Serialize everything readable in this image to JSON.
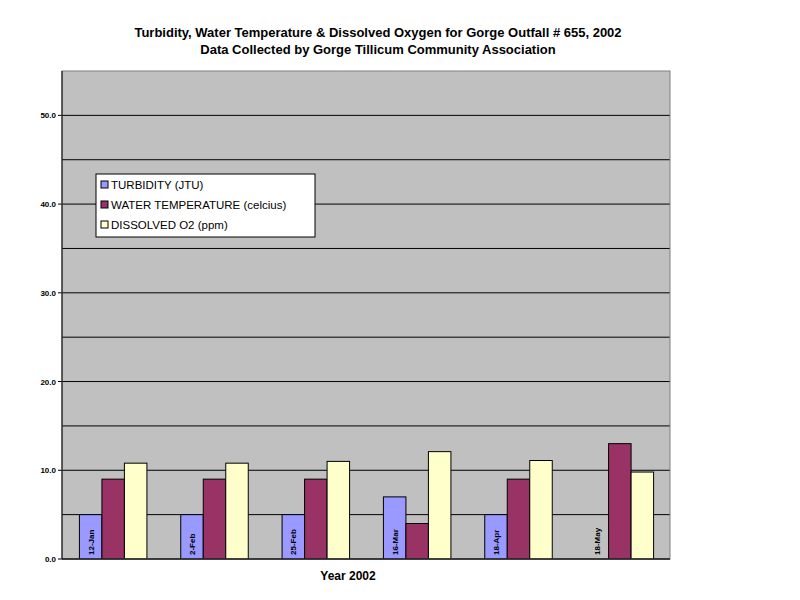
{
  "chart_data": {
    "type": "bar",
    "title": "Turbidity, Water Temperature & Dissolved Oxygen for Gorge Outfall # 655, 2002",
    "subtitle": "Data Collected by Gorge Tillicum Community Association",
    "x_label": "Year 2002",
    "categories": [
      "12-Jan",
      "2-Feb",
      "25-Feb",
      "16-Mar",
      "18-Apr",
      "18-May"
    ],
    "series": [
      {
        "name": "TURBIDITY (JTU)",
        "color": "#9999ff",
        "values": [
          5,
          5,
          5,
          7,
          5,
          null
        ]
      },
      {
        "name": "WATER TEMPERATURE (celcius)",
        "color": "#993366",
        "values": [
          9,
          9,
          9,
          4,
          9,
          13
        ]
      },
      {
        "name": "DISSOLVED O2 (ppm)",
        "color": "#ffffcc",
        "values": [
          10.8,
          10.8,
          11,
          12.1,
          11.1,
          9.8
        ]
      }
    ],
    "ylim": [
      0,
      55
    ],
    "yticks": [
      {
        "value": 0,
        "label": "0.0"
      },
      {
        "value": 10,
        "label": "10.0"
      },
      {
        "value": 20,
        "label": "20.0"
      },
      {
        "value": 30,
        "label": "30.0"
      },
      {
        "value": 40,
        "label": "40.0"
      },
      {
        "value": 50,
        "label": "50.0"
      }
    ],
    "grid": true,
    "legend": "upper left"
  }
}
